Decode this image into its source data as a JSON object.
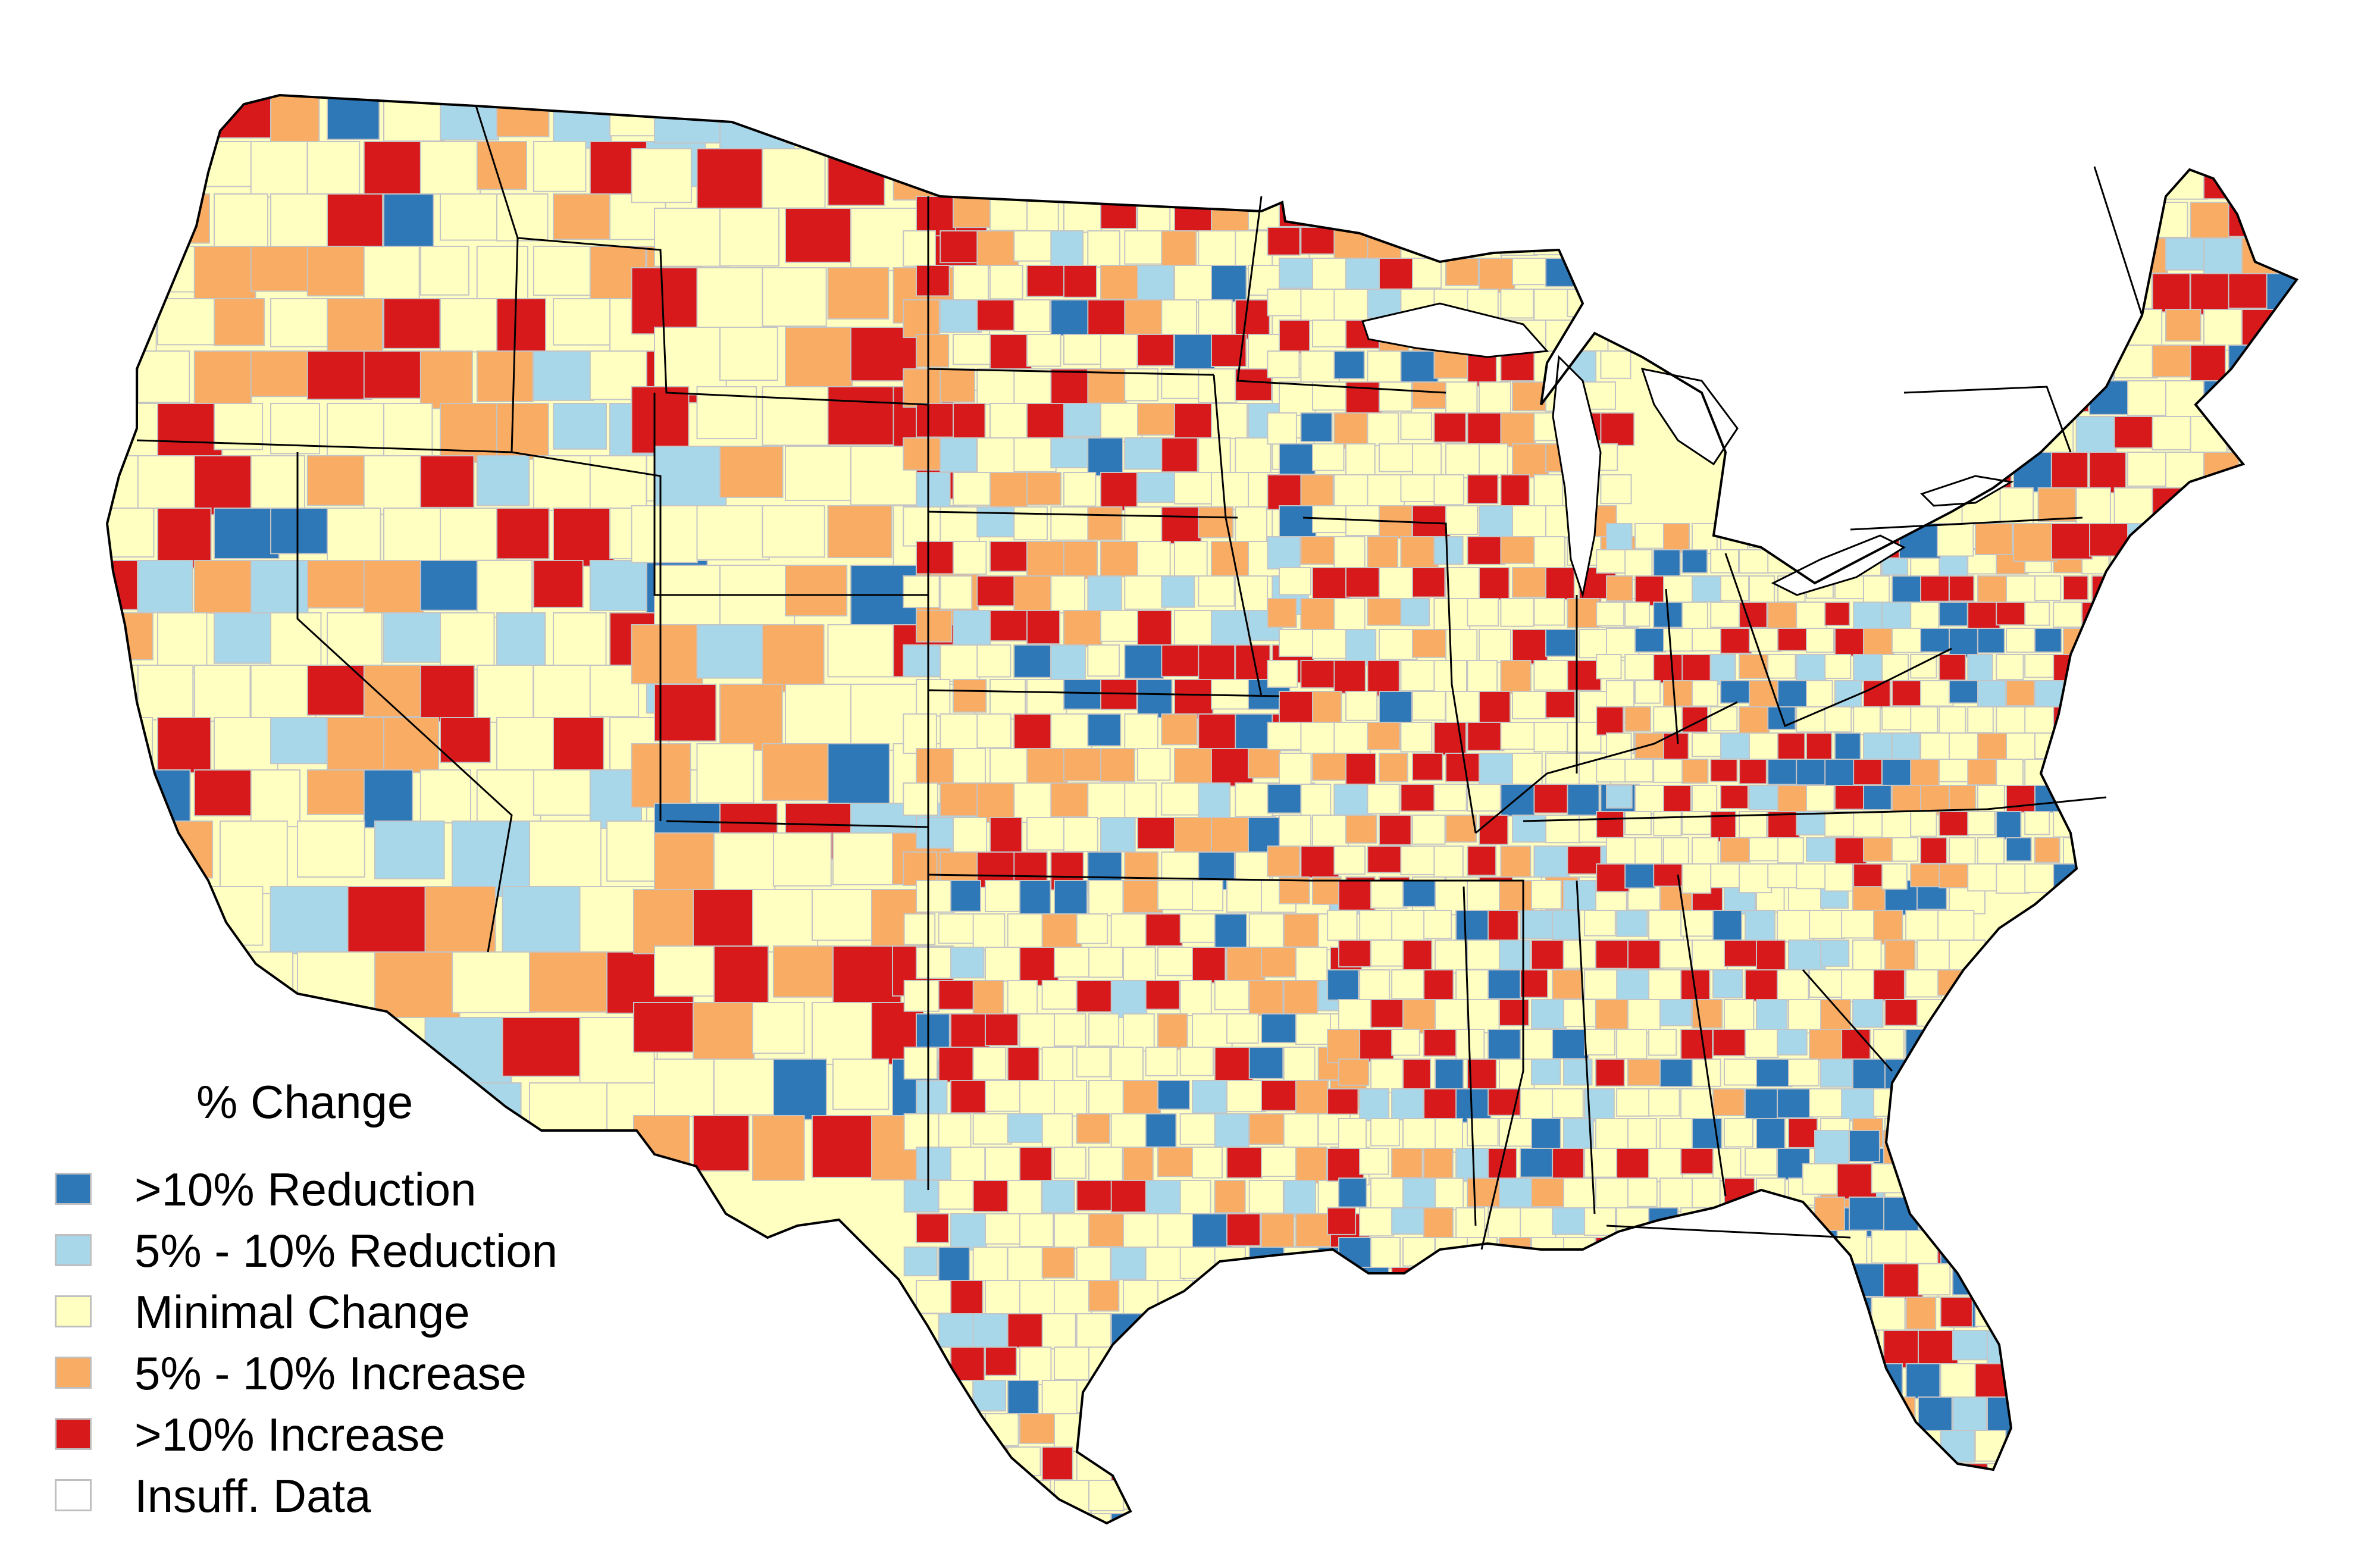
{
  "map": {
    "region": "contiguous-united-states",
    "unit": "county",
    "colors": {
      "reduction_strong": "#2e78b8",
      "reduction_mild": "#a9d7ea",
      "minimal": "#ffffc2",
      "increase_mild": "#f9ac63",
      "increase_strong": "#d7191c",
      "insufficient": "#ffffff",
      "county_border": "#c4c4c4",
      "state_border": "#000000"
    }
  },
  "legend": {
    "title": "% Change",
    "items": [
      {
        "label": ">10% Reduction",
        "color": "#2e78b8"
      },
      {
        "label": "5% - 10% Reduction",
        "color": "#a9d7ea"
      },
      {
        "label": "Minimal Change",
        "color": "#ffffc2"
      },
      {
        "label": "5% - 10% Increase",
        "color": "#f9ac63"
      },
      {
        "label": ">10% Increase",
        "color": "#d7191c"
      },
      {
        "label": "Insuff. Data",
        "color": "#ffffff"
      }
    ]
  }
}
